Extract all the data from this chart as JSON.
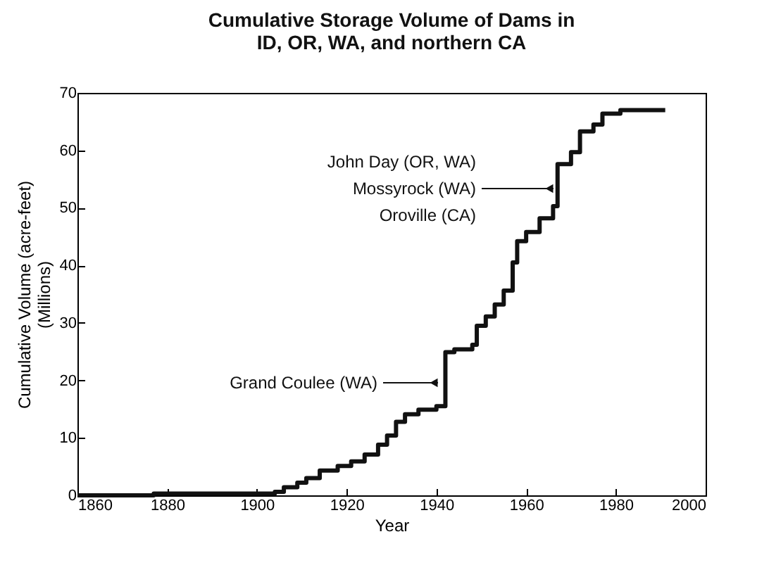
{
  "chart_data": {
    "type": "step",
    "title": "Cumulative Storage Volume of Dams in\nID, OR, WA, and northern CA",
    "xlabel": "Year",
    "ylabel": "Cumulative Volume (acre-feet)\n(Millions)",
    "x": [
      1860,
      1877,
      1904,
      1906,
      1909,
      1911,
      1914,
      1918,
      1921,
      1924,
      1927,
      1929,
      1931,
      1933,
      1936,
      1940,
      1942,
      1944,
      1948,
      1949,
      1951,
      1953,
      1955,
      1957,
      1958,
      1960,
      1963,
      1966,
      1967,
      1970,
      1972,
      1975,
      1977,
      1981,
      1991
    ],
    "series": [
      {
        "color": "#111111",
        "values": [
          0,
          0.3,
          0.6,
          1.4,
          2.2,
          3.0,
          4.3,
          5.1,
          5.9,
          7.1,
          8.8,
          10.4,
          12.8,
          14.1,
          14.9,
          15.5,
          24.9,
          25.4,
          26.2,
          29.5,
          31.1,
          33.2,
          35.6,
          40.5,
          44.2,
          45.8,
          48.2,
          50.3,
          57.6,
          59.7,
          63.3,
          64.5,
          66.4,
          67.0,
          67.0
        ]
      }
    ],
    "xlim": [
      1860,
      2000
    ],
    "xticks": [
      1860,
      1880,
      1900,
      1920,
      1940,
      1960,
      1980,
      2000
    ],
    "ylim": [
      0,
      70
    ],
    "yticks": [
      0,
      10,
      20,
      30,
      40,
      50,
      60,
      70
    ],
    "grid": false,
    "annotations": [
      "John Day (OR, WA)",
      "Mossyrock (WA)",
      "Oroville (CA)",
      "Grand Coulee (WA)"
    ]
  }
}
